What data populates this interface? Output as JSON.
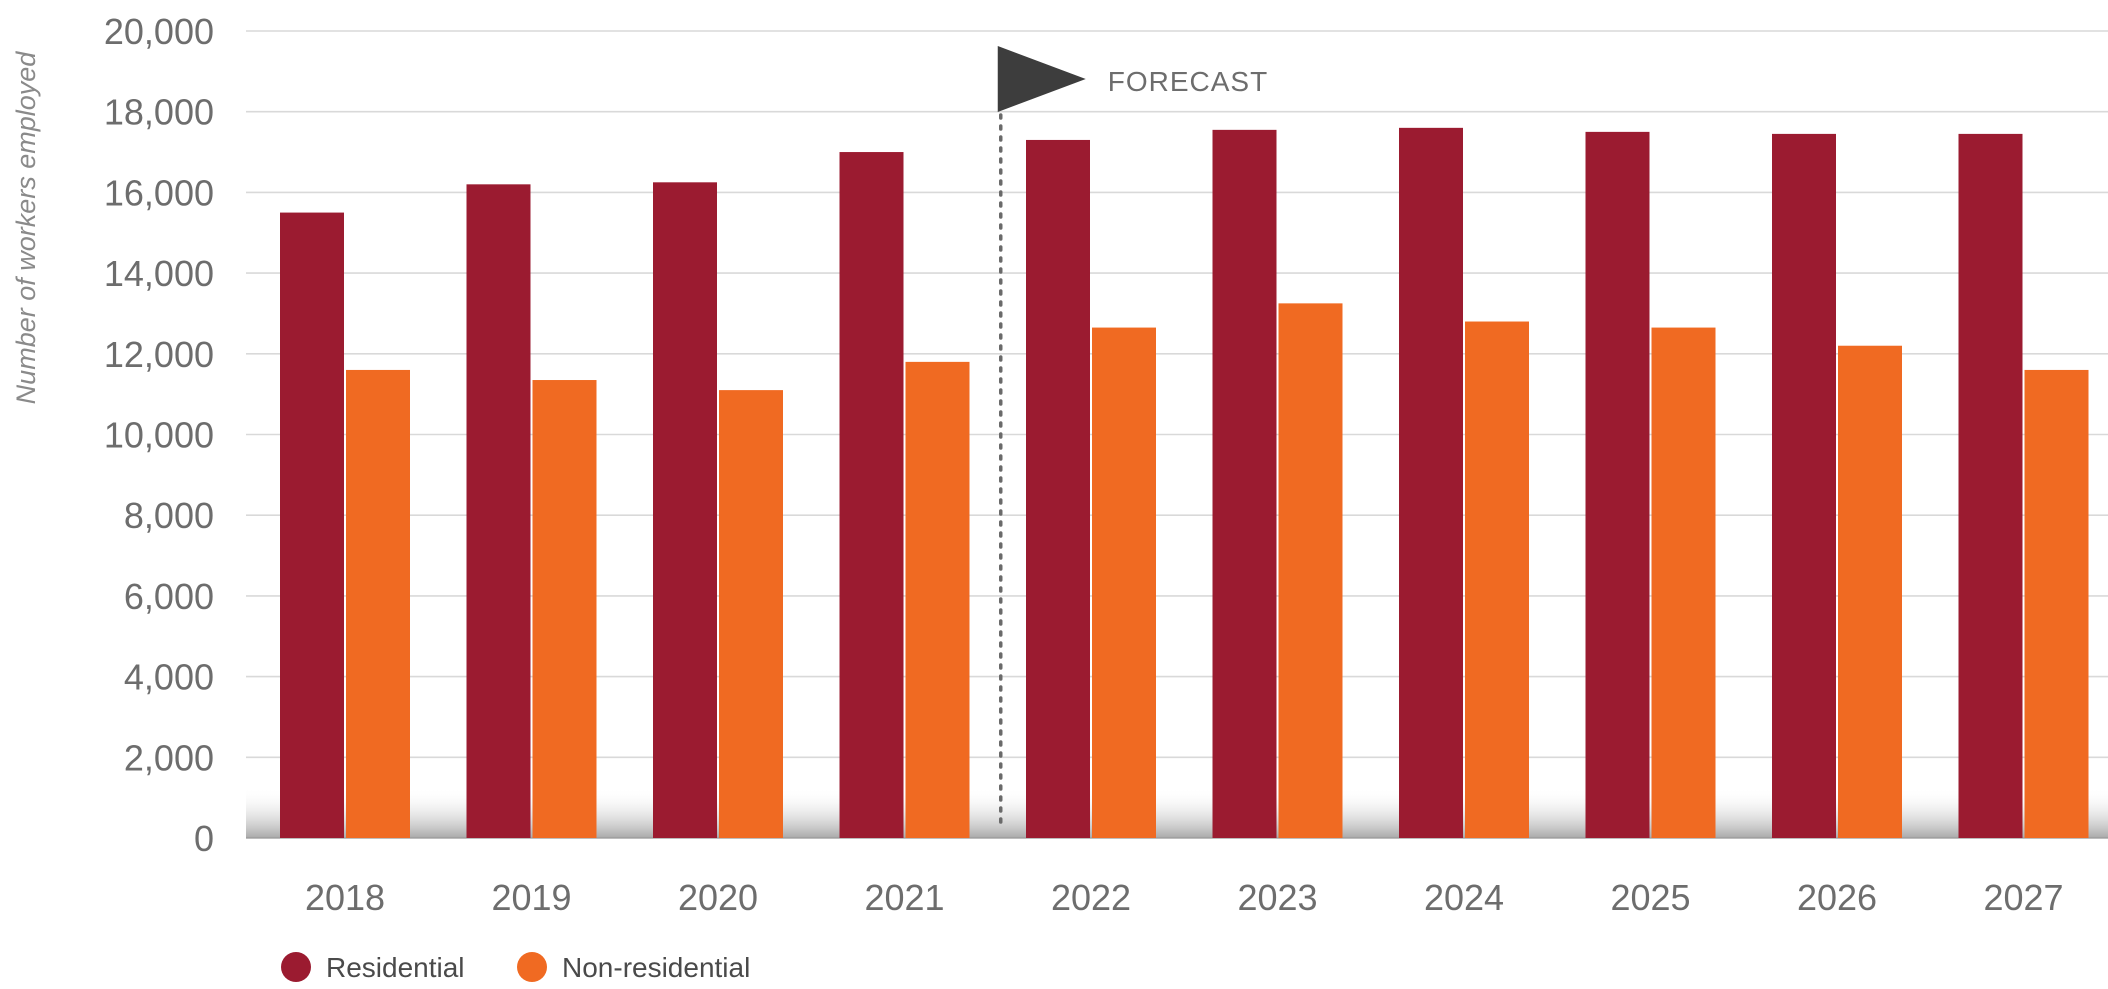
{
  "chart_data": {
    "type": "bar",
    "title": "",
    "xlabel": "",
    "ylabel": "Number of workers employed",
    "ylim": [
      0,
      20000
    ],
    "yticks": [
      0,
      2000,
      4000,
      6000,
      8000,
      10000,
      12000,
      14000,
      16000,
      18000,
      20000
    ],
    "ytick_labels": [
      "0",
      "2,000",
      "4,000",
      "6,000",
      "8,000",
      "10,000",
      "12,000",
      "14,000",
      "16,000",
      "18,000",
      "20,000"
    ],
    "categories": [
      "2018",
      "2019",
      "2020",
      "2021",
      "2022",
      "2023",
      "2024",
      "2025",
      "2026",
      "2027"
    ],
    "series": [
      {
        "name": "Residential",
        "color": "#9b1b30",
        "values": [
          15500,
          16200,
          16250,
          17000,
          17300,
          17550,
          17600,
          17500,
          17450,
          17450
        ]
      },
      {
        "name": "Non-residential",
        "color": "#f06a22",
        "values": [
          11600,
          11350,
          11100,
          11800,
          12650,
          13250,
          12800,
          12650,
          12200,
          11600
        ]
      }
    ],
    "annotation": {
      "text": "FORECAST",
      "position_category": "2022",
      "flag_color": "#3d3d3d",
      "divider_style": "dotted"
    },
    "grid": true,
    "legend_position": "bottom-left",
    "colors": {
      "gridline": "#d9d9d9",
      "tick_text": "#6d6d6d",
      "axis_label": "#8a8a8a",
      "legend_text": "#4a4a4a"
    }
  }
}
